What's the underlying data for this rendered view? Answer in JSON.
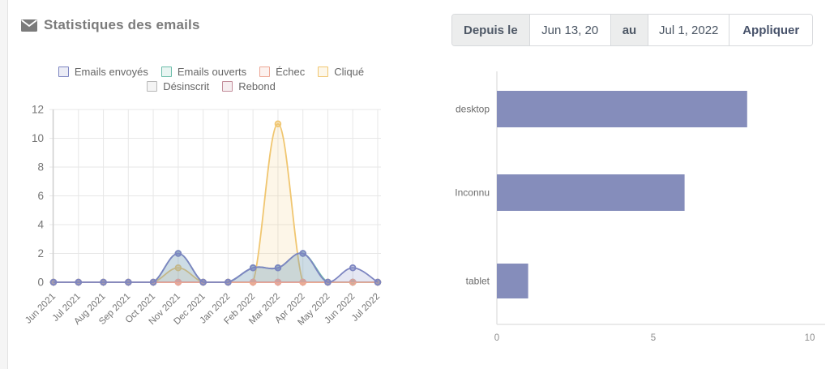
{
  "header": {
    "title": "Statistiques des emails",
    "icon": "envelope"
  },
  "date_filter": {
    "from_label": "Depuis le",
    "from_value": "Jun 13, 20",
    "to_label": "au",
    "to_value": "Jul 1, 2022",
    "apply_label": "Appliquer"
  },
  "colors": {
    "title_gray": "#7b7b7b",
    "grid": "#e7e7e7",
    "axis": "#cfcfcf",
    "tick_text": "#757575",
    "bar": "#858dbb"
  },
  "chart_data": [
    {
      "type": "line",
      "title": "",
      "xlabel": "",
      "ylabel": "",
      "ylim": [
        0,
        12
      ],
      "yticks": [
        0,
        2,
        4,
        6,
        8,
        10,
        12
      ],
      "grid": true,
      "legend_position": "top",
      "categories": [
        "Jun 2021",
        "Jul 2021",
        "Aug 2021",
        "Sep 2021",
        "Oct 2021",
        "Nov 2021",
        "Dec 2021",
        "Jan 2022",
        "Feb 2022",
        "Mar 2022",
        "Apr 2022",
        "May 2022",
        "Jun 2022",
        "Jul 2022"
      ],
      "series": [
        {
          "name": "Emails envoyés",
          "color": "#7d85c1",
          "fill": "rgba(125,133,193,0.20)",
          "legend_bg": "rgba(125,133,193,0.15)",
          "values": [
            0,
            0,
            0,
            0,
            0,
            2,
            0,
            0,
            1,
            1,
            2,
            0,
            1,
            0
          ]
        },
        {
          "name": "Emails ouverts",
          "color": "#6abca9",
          "fill": "rgba(106,188,169,0.20)",
          "legend_bg": "rgba(106,188,169,0.15)",
          "values": [
            0,
            0,
            0,
            0,
            0,
            2,
            0,
            0,
            1,
            1,
            2,
            0,
            0,
            0
          ]
        },
        {
          "name": "Échec",
          "color": "#eda795",
          "fill": "rgba(237,167,149,0.20)",
          "legend_bg": "rgba(237,167,149,0.15)",
          "values": [
            0,
            0,
            0,
            0,
            0,
            0,
            0,
            0,
            0,
            0,
            0,
            0,
            0,
            0
          ]
        },
        {
          "name": "Cliqué",
          "color": "#f0c670",
          "fill": "rgba(240,198,112,0.16)",
          "legend_bg": "rgba(240,198,112,0.15)",
          "values": [
            0,
            0,
            0,
            0,
            0,
            1,
            0,
            0,
            0,
            11,
            0,
            0,
            0,
            0
          ]
        },
        {
          "name": "Désinscrit",
          "color": "#b8b8b8",
          "fill": "rgba(184,184,184,0.18)",
          "legend_bg": "rgba(184,184,184,0.15)",
          "values": [
            0,
            0,
            0,
            0,
            0,
            0,
            0,
            0,
            0,
            0,
            0,
            0,
            0,
            0
          ]
        },
        {
          "name": "Rebond",
          "color": "#c38e9b",
          "fill": "rgba(195,142,155,0.18)",
          "legend_bg": "rgba(195,142,155,0.15)",
          "values": [
            0,
            0,
            0,
            0,
            0,
            0,
            0,
            0,
            0,
            0,
            0,
            0,
            0,
            0
          ]
        }
      ],
      "draw_order": [
        4,
        5,
        3,
        1,
        2,
        0
      ]
    },
    {
      "type": "bar",
      "orientation": "horizontal",
      "title": "",
      "categories": [
        "desktop",
        "Inconnu",
        "tablet"
      ],
      "values": [
        8,
        6,
        1
      ],
      "xlim": [
        0,
        10
      ],
      "xticks": [
        0,
        5,
        10
      ],
      "grid": false
    }
  ]
}
